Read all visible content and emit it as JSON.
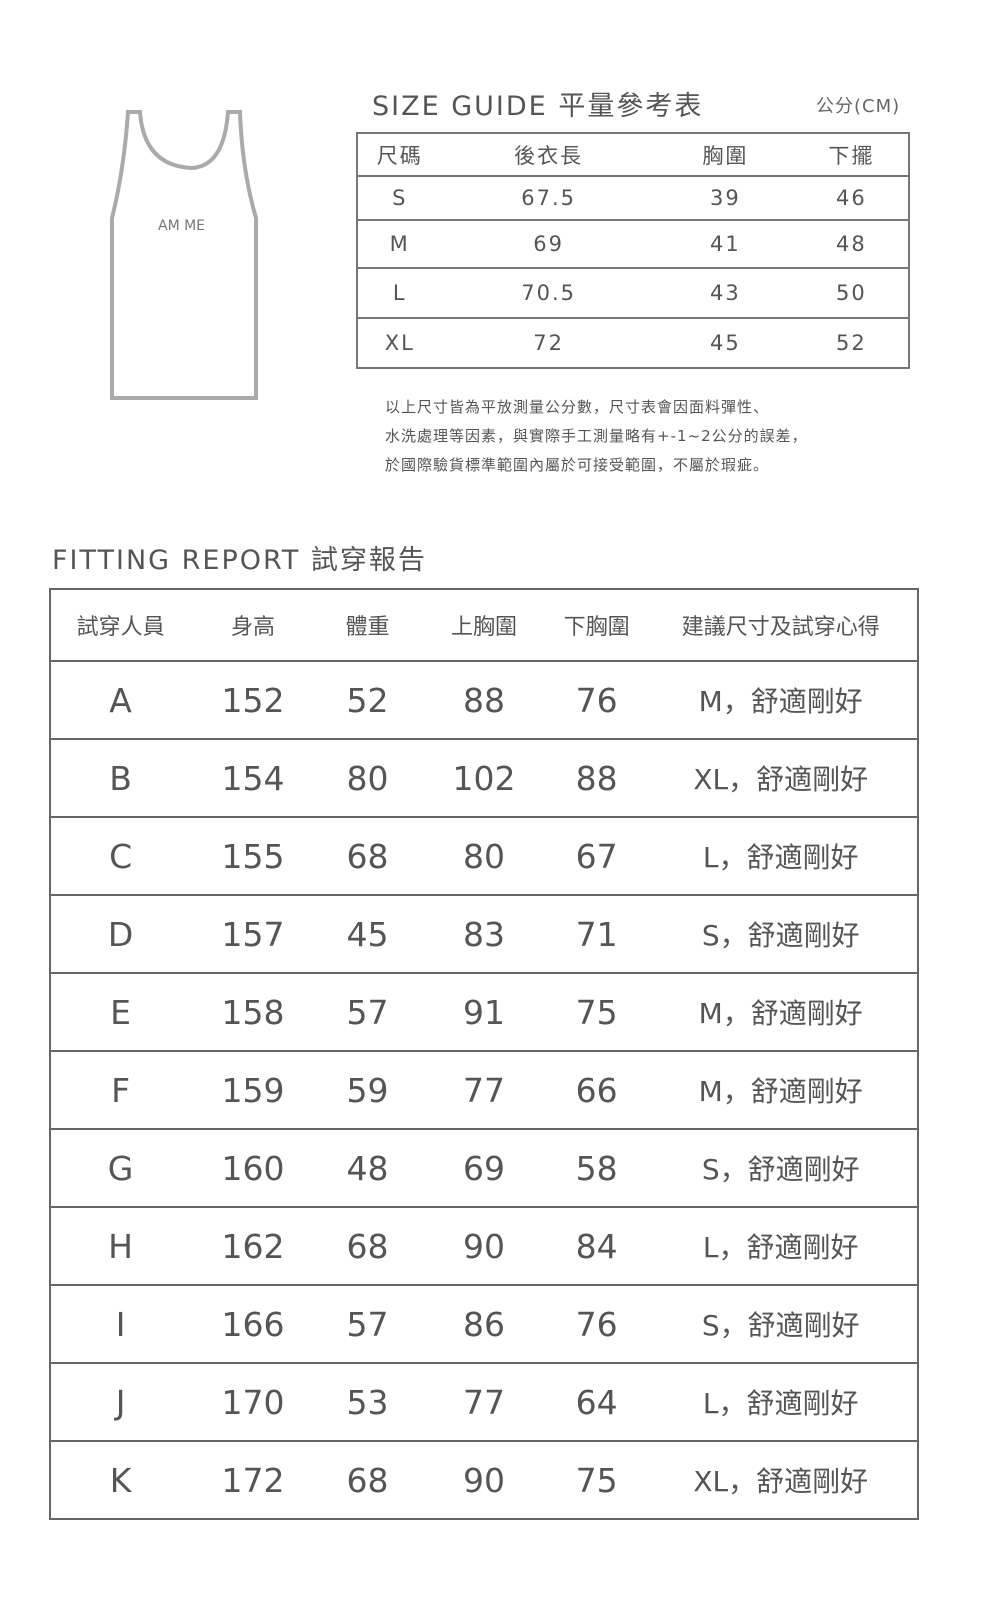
{
  "tank_illustration": {
    "label": "AM ME"
  },
  "size_guide": {
    "title": "SIZE GUIDE 平量參考表",
    "unit": "公分(CM)",
    "headers": [
      "尺碼",
      "後衣長",
      "胸圍",
      "下擺"
    ],
    "rows": [
      [
        "S",
        "67.5",
        "39",
        "46"
      ],
      [
        "M",
        "69",
        "41",
        "48"
      ],
      [
        "L",
        "70.5",
        "43",
        "50"
      ],
      [
        "XL",
        "72",
        "45",
        "52"
      ]
    ],
    "notes": [
      "以上尺寸皆為平放測量公分數，尺寸表會因面料彈性、",
      "水洗處理等因素，與實際手工測量略有+-1~2公分的誤差，",
      "於國際驗貨標準範圍內屬於可接受範圍，不屬於瑕疵。"
    ]
  },
  "fitting_report": {
    "title": "FITTING REPORT 試穿報告",
    "headers": [
      "試穿人員",
      "身高",
      "體重",
      "上胸圍",
      "下胸圍",
      "建議尺寸及試穿心得"
    ],
    "rows": [
      [
        "A",
        "152",
        "52",
        "88",
        "76",
        "M，舒適剛好"
      ],
      [
        "B",
        "154",
        "80",
        "102",
        "88",
        "XL，舒適剛好"
      ],
      [
        "C",
        "155",
        "68",
        "80",
        "67",
        "L，舒適剛好"
      ],
      [
        "D",
        "157",
        "45",
        "83",
        "71",
        "S，舒適剛好"
      ],
      [
        "E",
        "158",
        "57",
        "91",
        "75",
        "M，舒適剛好"
      ],
      [
        "F",
        "159",
        "59",
        "77",
        "66",
        "M，舒適剛好"
      ],
      [
        "G",
        "160",
        "48",
        "69",
        "58",
        "S，舒適剛好"
      ],
      [
        "H",
        "162",
        "68",
        "90",
        "84",
        "L，舒適剛好"
      ],
      [
        "I",
        "166",
        "57",
        "86",
        "76",
        "S，舒適剛好"
      ],
      [
        "J",
        "170",
        "53",
        "77",
        "64",
        "L，舒適剛好"
      ],
      [
        "K",
        "172",
        "68",
        "90",
        "75",
        "XL，舒適剛好"
      ]
    ]
  }
}
